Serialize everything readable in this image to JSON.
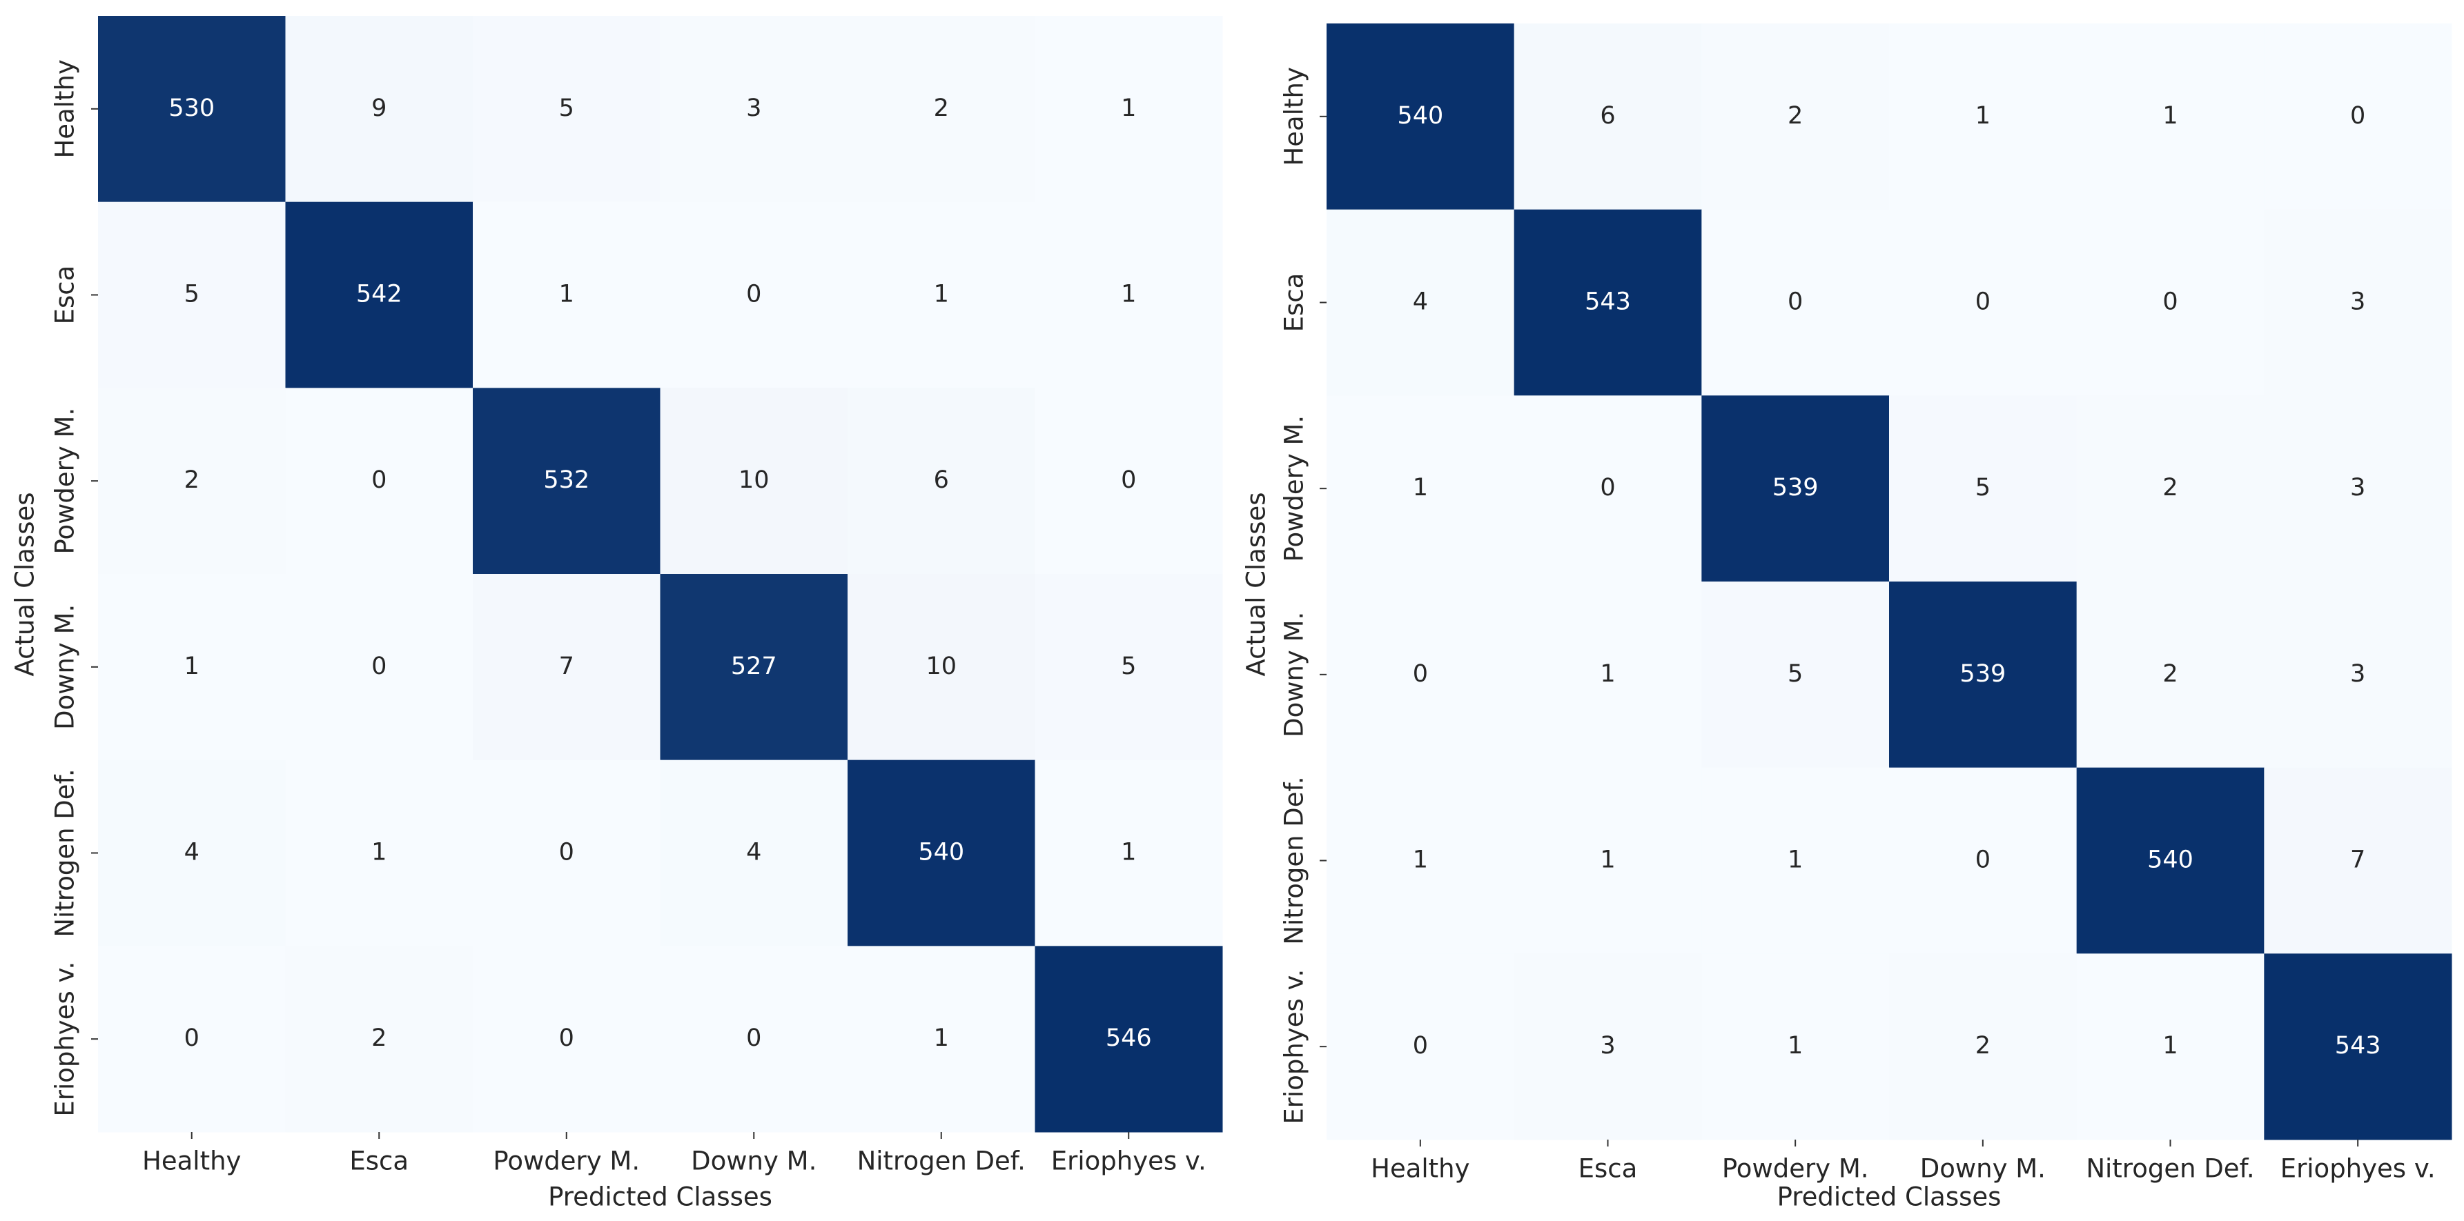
{
  "chart_data": [
    {
      "type": "heatmap",
      "x_label": "Predicted Classes",
      "y_label": "Actual Classes",
      "categories": [
        "Healthy",
        "Esca",
        "Powdery M.",
        "Downy M.",
        "Nitrogen Def.",
        "Eriophyes v."
      ],
      "rows": [
        "Healthy",
        "Esca",
        "Powdery M.",
        "Downy M.",
        "Nitrogen Def.",
        "Eriophyes v."
      ],
      "values": [
        [
          530,
          9,
          5,
          3,
          2,
          1
        ],
        [
          5,
          542,
          1,
          0,
          1,
          1
        ],
        [
          2,
          0,
          532,
          10,
          6,
          0
        ],
        [
          1,
          0,
          7,
          527,
          10,
          5
        ],
        [
          4,
          1,
          0,
          4,
          540,
          1
        ],
        [
          0,
          2,
          0,
          0,
          1,
          546
        ]
      ],
      "colors": [
        "#f7fbff",
        "#08306b"
      ]
    },
    {
      "type": "heatmap",
      "x_label": "Predicted Classes",
      "y_label": "Actual Classes",
      "categories": [
        "Healthy",
        "Esca",
        "Powdery M.",
        "Downy M.",
        "Nitrogen Def.",
        "Eriophyes v."
      ],
      "rows": [
        "Healthy",
        "Esca",
        "Powdery M.",
        "Downy M.",
        "Nitrogen Def.",
        "Eriophyes v."
      ],
      "values": [
        [
          540,
          6,
          2,
          1,
          1,
          0
        ],
        [
          4,
          543,
          0,
          0,
          0,
          3
        ],
        [
          1,
          0,
          539,
          5,
          2,
          3
        ],
        [
          0,
          1,
          5,
          539,
          2,
          3
        ],
        [
          1,
          1,
          1,
          0,
          540,
          7
        ],
        [
          0,
          3,
          1,
          2,
          1,
          543
        ]
      ],
      "colors": [
        "#f7fbff",
        "#08306b"
      ]
    }
  ]
}
